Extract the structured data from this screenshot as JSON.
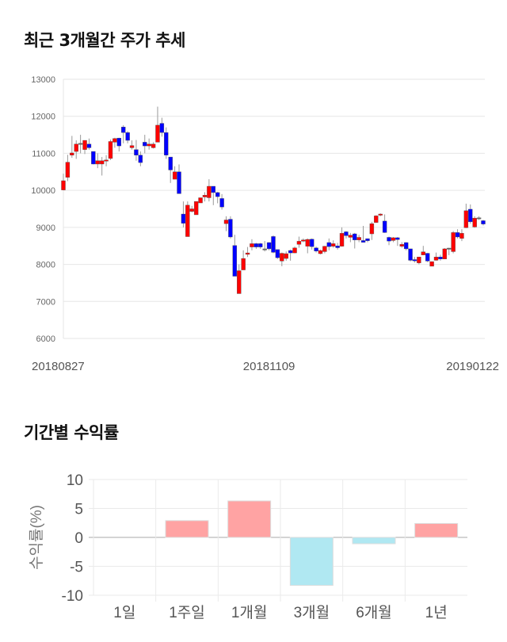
{
  "colors": {
    "up": "#ff0000",
    "down": "#0000ff",
    "positive_bar": "#ffa3a3",
    "negative_bar": "#b0e8f2"
  },
  "chart_data": [
    {
      "type": "candlestick",
      "title": "최근 3개월간 주가 추세",
      "ylim": [
        6000,
        13000
      ],
      "yticks": [
        6000,
        7000,
        8000,
        9000,
        10000,
        11000,
        12000,
        13000
      ],
      "xtick_labels": [
        {
          "index": 0,
          "label": "20180827"
        },
        {
          "index": 48,
          "label": "20181109"
        },
        {
          "index": 98,
          "label": "20190122"
        }
      ],
      "grid": true,
      "ohlc_fields": [
        "open",
        "high",
        "low",
        "close"
      ],
      "candles": [
        [
          10010,
          10450,
          10000,
          10260
        ],
        [
          10350,
          10960,
          10250,
          10760
        ],
        [
          10950,
          11470,
          10880,
          11010
        ],
        [
          11050,
          11350,
          10850,
          11250
        ],
        [
          11270,
          11500,
          11000,
          11270
        ],
        [
          11100,
          11350,
          10980,
          11350
        ],
        [
          11250,
          11400,
          11100,
          11150
        ],
        [
          11050,
          11050,
          10700,
          10710
        ],
        [
          10710,
          11000,
          10600,
          10800
        ],
        [
          10710,
          10900,
          10400,
          10800
        ],
        [
          10800,
          10950,
          10650,
          10820
        ],
        [
          10860,
          11370,
          10820,
          11320
        ],
        [
          11300,
          11420,
          11150,
          11400
        ],
        [
          11410,
          11420,
          11050,
          11200
        ],
        [
          11710,
          11760,
          11270,
          11560
        ],
        [
          11560,
          11600,
          11270,
          11350
        ],
        [
          11150,
          11350,
          11100,
          11210
        ],
        [
          11100,
          11360,
          10800,
          10950
        ],
        [
          10950,
          11050,
          10650,
          10750
        ],
        [
          11300,
          11500,
          11000,
          11200
        ],
        [
          11200,
          11400,
          11100,
          11250
        ],
        [
          11150,
          11300,
          11130,
          11250
        ],
        [
          11300,
          12260,
          11300,
          11760
        ],
        [
          11810,
          11960,
          11450,
          11560
        ],
        [
          11560,
          11700,
          10850,
          10950
        ],
        [
          10900,
          10900,
          10200,
          10550
        ],
        [
          10300,
          10650,
          10300,
          10500
        ],
        [
          10500,
          10700,
          9910,
          9910
        ],
        [
          9360,
          9700,
          9000,
          9110
        ],
        [
          8750,
          9700,
          8750,
          9600
        ],
        [
          9430,
          9580,
          9400,
          9500
        ],
        [
          9340,
          9700,
          9340,
          9700
        ],
        [
          9660,
          9800,
          9660,
          9800
        ],
        [
          9820,
          9950,
          9700,
          9870
        ],
        [
          9800,
          10300,
          9700,
          10110
        ],
        [
          10110,
          10110,
          9600,
          9940
        ],
        [
          9940,
          9960,
          9650,
          9830
        ],
        [
          9780,
          9900,
          9480,
          9550
        ],
        [
          9100,
          9300,
          8900,
          9200
        ],
        [
          9220,
          9300,
          8700,
          8740
        ],
        [
          8510,
          8800,
          7680,
          7680
        ],
        [
          7210,
          8000,
          7210,
          7830
        ],
        [
          7850,
          8380,
          7850,
          8160
        ],
        [
          8270,
          8470,
          8200,
          8310
        ],
        [
          8470,
          8680,
          8380,
          8560
        ],
        [
          8560,
          8580,
          8420,
          8470
        ],
        [
          8560,
          8580,
          8420,
          8470
        ],
        [
          8420,
          8630,
          8350,
          8420
        ],
        [
          8590,
          8600,
          8380,
          8420
        ],
        [
          8753,
          8780,
          8300,
          8325
        ],
        [
          8400,
          8400,
          8150,
          8180
        ],
        [
          8090,
          8320,
          7950,
          8300
        ],
        [
          8160,
          8350,
          8100,
          8290
        ],
        [
          8375,
          8400,
          8100,
          8310
        ],
        [
          8310,
          8480,
          8300,
          8445
        ],
        [
          8540,
          8750,
          8450,
          8625
        ],
        [
          8630,
          8700,
          8600,
          8660
        ],
        [
          8490,
          8700,
          8300,
          8675
        ],
        [
          8680,
          8700,
          8400,
          8480
        ],
        [
          8445,
          8480,
          8320,
          8360
        ],
        [
          8290,
          8400,
          8270,
          8375
        ],
        [
          8345,
          8500,
          8300,
          8490
        ],
        [
          8590,
          8700,
          8380,
          8480
        ],
        [
          8490,
          8650,
          8450,
          8560
        ],
        [
          8500,
          8580,
          8400,
          8450
        ],
        [
          8490,
          9000,
          8480,
          8840
        ],
        [
          8880,
          8900,
          8700,
          8775
        ],
        [
          8730,
          8850,
          8600,
          8790
        ],
        [
          8825,
          8850,
          8430,
          8660
        ],
        [
          8660,
          8800,
          8600,
          8730
        ],
        [
          8645,
          9040,
          8590,
          8595
        ],
        [
          8695,
          8700,
          8600,
          8640
        ],
        [
          8825,
          9150,
          8660,
          9100
        ],
        [
          9130,
          9330,
          9120,
          9310
        ],
        [
          9340,
          9380,
          9300,
          9360
        ],
        [
          9170,
          9350,
          8850,
          8860
        ],
        [
          8730,
          8750,
          8520,
          8630
        ],
        [
          8645,
          8740,
          8600,
          8720
        ],
        [
          8720,
          8740,
          8500,
          8670
        ],
        [
          8490,
          8600,
          8450,
          8540
        ],
        [
          8590,
          8600,
          8380,
          8420
        ],
        [
          8420,
          8420,
          8080,
          8110
        ],
        [
          8130,
          8200,
          8050,
          8095
        ],
        [
          8040,
          8200,
          8000,
          8200
        ],
        [
          8255,
          8500,
          8250,
          8340
        ],
        [
          8300,
          8310,
          8060,
          8090
        ],
        [
          7950,
          8080,
          7950,
          8075
        ],
        [
          8110,
          8320,
          8100,
          8200
        ],
        [
          8200,
          8260,
          8100,
          8145
        ],
        [
          8145,
          8440,
          8140,
          8420
        ],
        [
          8440,
          8450,
          8250,
          8440
        ],
        [
          8345,
          8900,
          8300,
          8860
        ],
        [
          8860,
          8950,
          8700,
          8740
        ],
        [
          8700,
          8950,
          8630,
          8840
        ],
        [
          8990,
          9640,
          8980,
          9450
        ],
        [
          9490,
          9620,
          9100,
          9150
        ],
        [
          9010,
          9300,
          8990,
          9250
        ],
        [
          9260,
          9300,
          9200,
          9260
        ],
        [
          9180,
          9200,
          9050,
          9090
        ]
      ]
    },
    {
      "type": "bar",
      "title": "기간별 수익률",
      "ylabel": "수익률(%)",
      "ylim": [
        -10,
        10
      ],
      "yticks": [
        -10,
        -5,
        0,
        5,
        10
      ],
      "grid": true,
      "categories": [
        "1일",
        "1주일",
        "1개월",
        "3개월",
        "6개월",
        "1년"
      ],
      "values": [
        0,
        2.9,
        6.3,
        -8.3,
        -1.1,
        2.4
      ]
    }
  ]
}
